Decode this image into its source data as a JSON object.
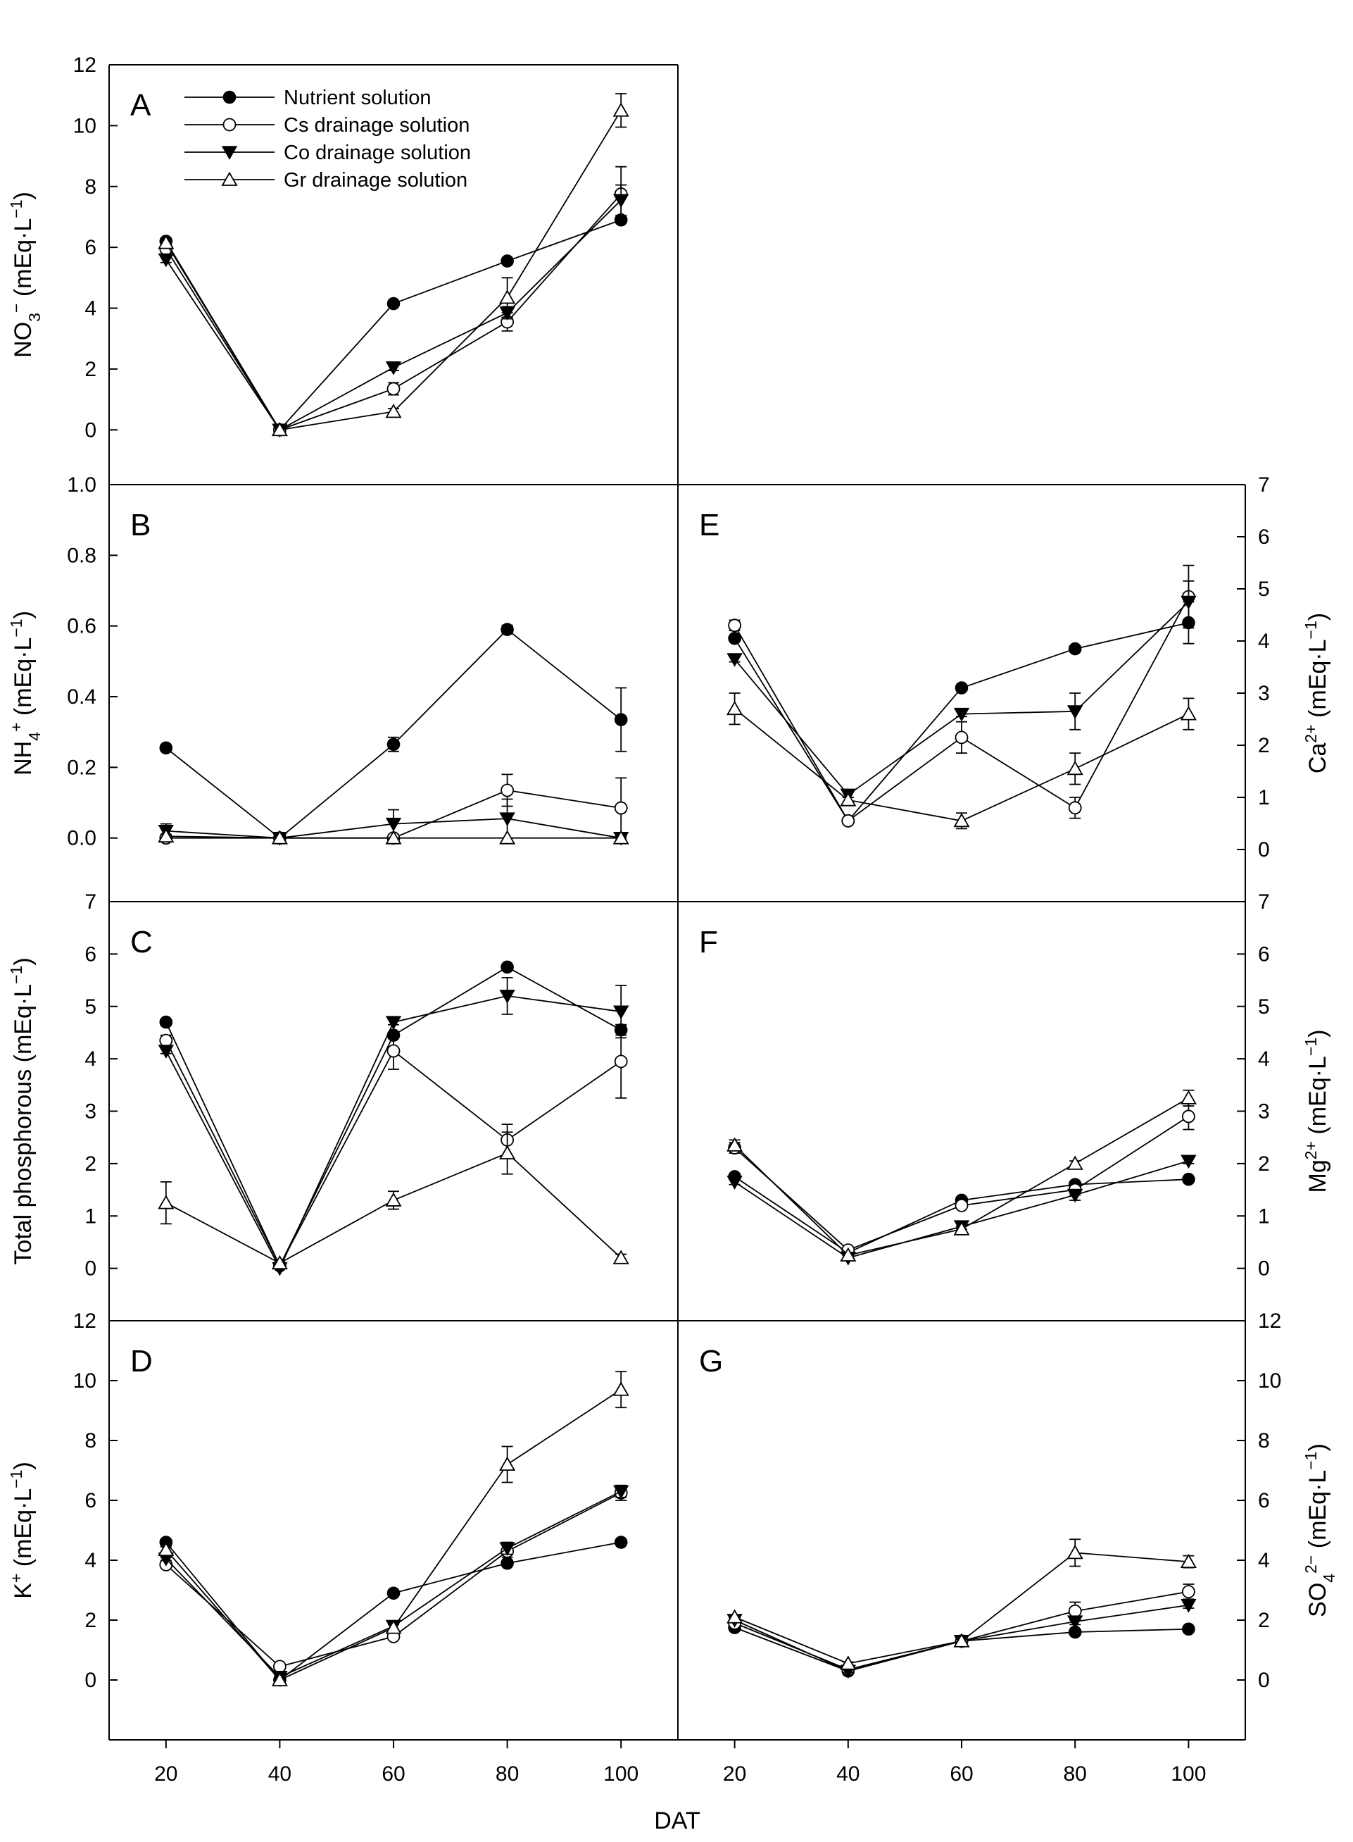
{
  "chart_data": {
    "type": "line",
    "x_axis": {
      "label": "DAT",
      "ticks": [
        "20",
        "40",
        "60",
        "80",
        "100"
      ],
      "range": [
        10,
        110
      ]
    },
    "legend": {
      "placement": "top-left of panel A",
      "entries": [
        {
          "name": "Nutrient solution",
          "marker": "filled-circle"
        },
        {
          "name": "Cs drainage solution",
          "marker": "open-circle"
        },
        {
          "name": "Co drainage solution",
          "marker": "filled-triangle-down"
        },
        {
          "name": "Gr drainage solution",
          "marker": "open-triangle-up"
        }
      ]
    },
    "panels": [
      {
        "letter": "A",
        "ylabel": "NO",
        "ylabel_sub": "3",
        "ylabel_sup": "−",
        "ylabel_rest": " (mEq·L",
        "ylabel_exp": "−1",
        "ylabel_side": "left",
        "ylim": [
          -1.8,
          12
        ],
        "yticks": [
          "0",
          "2",
          "4",
          "6",
          "8",
          "10",
          "12"
        ],
        "x": [
          20,
          40,
          60,
          80,
          100
        ],
        "series": [
          {
            "name": "Nutrient solution",
            "marker": "filled-circle",
            "values": [
              6.2,
              0.0,
              4.15,
              5.55,
              6.9
            ],
            "errors": [
              0.05,
              0.02,
              0.05,
              0.05,
              0.1
            ]
          },
          {
            "name": "Cs drainage solution",
            "marker": "open-circle",
            "values": [
              5.95,
              0.0,
              1.35,
              3.55,
              7.75
            ],
            "errors": [
              0.1,
              0.02,
              0.2,
              0.3,
              0.9
            ]
          },
          {
            "name": "Co drainage solution",
            "marker": "filled-triangle-down",
            "values": [
              5.6,
              0.0,
              2.05,
              3.85,
              7.55
            ],
            "errors": [
              0.1,
              0.02,
              0.1,
              0.2,
              0.5
            ]
          },
          {
            "name": "Gr drainage solution",
            "marker": "open-triangle-up",
            "values": [
              6.15,
              0.0,
              0.6,
              4.35,
              10.5
            ],
            "errors": [
              0.1,
              0.02,
              0.1,
              0.65,
              0.55
            ]
          }
        ]
      },
      {
        "letter": "B",
        "ylabel": "NH",
        "ylabel_sub": "4",
        "ylabel_sup": "+",
        "ylabel_rest": " (mEq·L",
        "ylabel_exp": "−1",
        "ylabel_side": "left",
        "ylim": [
          -0.18,
          1.0
        ],
        "yticks": [
          "0.0",
          "0.2",
          "0.4",
          "0.6",
          "0.8",
          "1.0"
        ],
        "x": [
          20,
          40,
          60,
          80,
          100
        ],
        "series": [
          {
            "name": "Nutrient solution",
            "marker": "filled-circle",
            "values": [
              0.255,
              0.0,
              0.265,
              0.59,
              0.335
            ],
            "errors": [
              0.005,
              0.003,
              0.02,
              0.012,
              0.09
            ]
          },
          {
            "name": "Cs drainage solution",
            "marker": "open-circle",
            "values": [
              0.0,
              0.0,
              0.0,
              0.135,
              0.085
            ],
            "errors": [
              0.005,
              0.003,
              0.005,
              0.045,
              0.085
            ]
          },
          {
            "name": "Co drainage solution",
            "marker": "filled-triangle-down",
            "values": [
              0.02,
              0.0,
              0.04,
              0.055,
              0.0
            ],
            "errors": [
              0.02,
              0.003,
              0.04,
              0.055,
              0.005
            ]
          },
          {
            "name": "Gr drainage solution",
            "marker": "open-triangle-up",
            "values": [
              0.005,
              0.0,
              0.0,
              0.0,
              0.0
            ],
            "errors": [
              0.005,
              0.003,
              0.003,
              0.003,
              0.003
            ]
          }
        ]
      },
      {
        "letter": "C",
        "ylabel": "Total phosphorous (mEq·L",
        "ylabel_sub": "",
        "ylabel_sup": "",
        "ylabel_rest": "",
        "ylabel_exp": "−1",
        "ylabel_side": "left",
        "ylim": [
          -1.0,
          7
        ],
        "yticks": [
          "0",
          "1",
          "2",
          "3",
          "4",
          "5",
          "6",
          "7"
        ],
        "x": [
          20,
          40,
          60,
          80,
          100
        ],
        "series": [
          {
            "name": "Nutrient solution",
            "marker": "filled-circle",
            "values": [
              4.7,
              0.05,
              4.45,
              5.75,
              4.55
            ],
            "errors": [
              0.05,
              0.02,
              0.05,
              0.05,
              0.1
            ]
          },
          {
            "name": "Cs drainage solution",
            "marker": "open-circle",
            "values": [
              4.35,
              0.05,
              4.15,
              2.45,
              3.95
            ],
            "errors": [
              0.1,
              0.05,
              0.35,
              0.3,
              0.7
            ]
          },
          {
            "name": "Co drainage solution",
            "marker": "filled-triangle-down",
            "values": [
              4.15,
              0.0,
              4.7,
              5.2,
              4.9
            ],
            "errors": [
              0.05,
              0.02,
              0.05,
              0.35,
              0.5
            ]
          },
          {
            "name": "Gr drainage solution",
            "marker": "open-triangle-up",
            "values": [
              1.25,
              0.1,
              1.3,
              2.2,
              0.2
            ],
            "errors": [
              0.4,
              0.05,
              0.17,
              0.4,
              0.07
            ]
          }
        ]
      },
      {
        "letter": "D",
        "ylabel": "K",
        "ylabel_sub": "",
        "ylabel_sup": "+",
        "ylabel_rest": " (mEq·L",
        "ylabel_exp": "−1",
        "ylabel_side": "left",
        "ylim": [
          -2,
          12
        ],
        "yticks": [
          "0",
          "2",
          "4",
          "6",
          "8",
          "10",
          "12"
        ],
        "x": [
          20,
          40,
          60,
          80,
          100
        ],
        "series": [
          {
            "name": "Nutrient solution",
            "marker": "filled-circle",
            "values": [
              4.6,
              0.0,
              2.9,
              3.9,
              4.6
            ],
            "errors": [
              0.05,
              0.02,
              0.05,
              0.05,
              0.05
            ]
          },
          {
            "name": "Cs drainage solution",
            "marker": "open-circle",
            "values": [
              3.85,
              0.45,
              1.45,
              4.3,
              6.25
            ],
            "errors": [
              0.05,
              0.05,
              0.1,
              0.2,
              0.25
            ]
          },
          {
            "name": "Co drainage solution",
            "marker": "filled-triangle-down",
            "values": [
              4.05,
              0.1,
              1.8,
              4.4,
              6.3
            ],
            "errors": [
              0.05,
              0.05,
              0.1,
              0.2,
              0.2
            ]
          },
          {
            "name": "Gr drainage solution",
            "marker": "open-triangle-up",
            "values": [
              4.35,
              0.0,
              1.75,
              7.2,
              9.7
            ],
            "errors": [
              0.1,
              0.05,
              0.1,
              0.6,
              0.6
            ]
          }
        ]
      },
      {
        "letter": "E",
        "ylabel": "Ca",
        "ylabel_sub": "",
        "ylabel_sup": "2+",
        "ylabel_rest": " (mEq·L",
        "ylabel_exp": "−1",
        "ylabel_side": "right",
        "ylim": [
          -1.0,
          7
        ],
        "yticks": [
          "0",
          "1",
          "2",
          "3",
          "4",
          "5",
          "6",
          "7"
        ],
        "x": [
          20,
          40,
          60,
          80,
          100
        ],
        "series": [
          {
            "name": "Nutrient solution",
            "marker": "filled-circle",
            "values": [
              4.05,
              0.55,
              3.1,
              3.85,
              4.35
            ],
            "errors": [
              0.05,
              0.05,
              0.05,
              0.05,
              0.4
            ]
          },
          {
            "name": "Cs drainage solution",
            "marker": "open-circle",
            "values": [
              4.3,
              0.55,
              2.15,
              0.8,
              4.85
            ],
            "errors": [
              0.1,
              0.05,
              0.3,
              0.2,
              0.6
            ]
          },
          {
            "name": "Co drainage solution",
            "marker": "filled-triangle-down",
            "values": [
              3.65,
              1.05,
              2.6,
              2.65,
              4.75
            ],
            "errors": [
              0.05,
              0.05,
              0.05,
              0.35,
              0.4
            ]
          },
          {
            "name": "Gr drainage solution",
            "marker": "open-triangle-up",
            "values": [
              2.7,
              0.95,
              0.55,
              1.55,
              2.6
            ],
            "errors": [
              0.3,
              0.05,
              0.15,
              0.3,
              0.3
            ]
          }
        ]
      },
      {
        "letter": "F",
        "ylabel": "Mg",
        "ylabel_sub": "",
        "ylabel_sup": "2+",
        "ylabel_rest": " (mEq·L",
        "ylabel_exp": "−1",
        "ylabel_side": "right",
        "ylim": [
          -1.0,
          7
        ],
        "yticks": [
          "0",
          "1",
          "2",
          "3",
          "4",
          "5",
          "6",
          "7"
        ],
        "x": [
          20,
          40,
          60,
          80,
          100
        ],
        "series": [
          {
            "name": "Nutrient solution",
            "marker": "filled-circle",
            "values": [
              1.75,
              0.3,
              1.3,
              1.6,
              1.7
            ],
            "errors": [
              0.05,
              0.05,
              0.05,
              0.05,
              0.05
            ]
          },
          {
            "name": "Cs drainage solution",
            "marker": "open-circle",
            "values": [
              2.3,
              0.35,
              1.2,
              1.5,
              2.9
            ],
            "errors": [
              0.1,
              0.05,
              0.05,
              0.1,
              0.25
            ]
          },
          {
            "name": "Co drainage solution",
            "marker": "filled-triangle-down",
            "values": [
              1.65,
              0.2,
              0.8,
              1.4,
              2.05
            ],
            "errors": [
              0.05,
              0.05,
              0.05,
              0.1,
              0.05
            ]
          },
          {
            "name": "Gr drainage solution",
            "marker": "open-triangle-up",
            "values": [
              2.35,
              0.25,
              0.75,
              2.0,
              3.25
            ],
            "errors": [
              0.1,
              0.05,
              0.05,
              0.05,
              0.15
            ]
          }
        ]
      },
      {
        "letter": "G",
        "ylabel": "SO",
        "ylabel_sub": "4",
        "ylabel_sup": "2−",
        "ylabel_rest": " (mEq·L",
        "ylabel_exp": "−1",
        "ylabel_side": "right",
        "ylim": [
          -2,
          12
        ],
        "yticks": [
          "0",
          "2",
          "4",
          "6",
          "8",
          "10",
          "12"
        ],
        "x": [
          20,
          40,
          60,
          80,
          100
        ],
        "series": [
          {
            "name": "Nutrient solution",
            "marker": "filled-circle",
            "values": [
              1.75,
              0.3,
              1.3,
              1.6,
              1.7
            ],
            "errors": [
              0.05,
              0.05,
              0.05,
              0.05,
              0.05
            ]
          },
          {
            "name": "Cs drainage solution",
            "marker": "open-circle",
            "values": [
              1.9,
              0.35,
              1.3,
              2.3,
              2.95
            ],
            "errors": [
              0.05,
              0.05,
              0.05,
              0.3,
              0.25
            ]
          },
          {
            "name": "Co drainage solution",
            "marker": "filled-triangle-down",
            "values": [
              2.0,
              0.3,
              1.3,
              1.95,
              2.5
            ],
            "errors": [
              0.05,
              0.05,
              0.05,
              0.1,
              0.1
            ]
          },
          {
            "name": "Gr drainage solution",
            "marker": "open-triangle-up",
            "values": [
              2.1,
              0.55,
              1.3,
              4.25,
              3.95
            ],
            "errors": [
              0.05,
              0.05,
              0.05,
              0.45,
              0.2
            ]
          }
        ]
      }
    ]
  }
}
